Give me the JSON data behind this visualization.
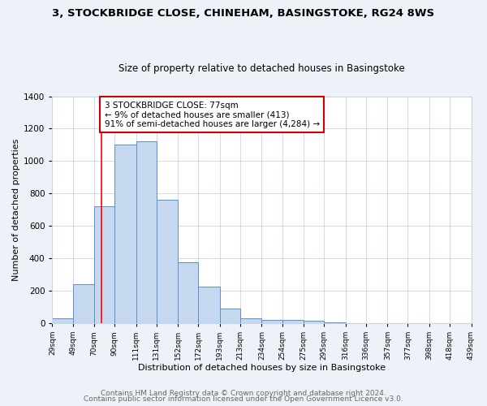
{
  "title1": "3, STOCKBRIDGE CLOSE, CHINEHAM, BASINGSTOKE, RG24 8WS",
  "title2": "Size of property relative to detached houses in Basingstoke",
  "xlabel": "Distribution of detached houses by size in Basingstoke",
  "ylabel": "Number of detached properties",
  "bar_edges": [
    29,
    49,
    70,
    90,
    111,
    131,
    152,
    172,
    193,
    213,
    234,
    254,
    275,
    295,
    316,
    336,
    357,
    377,
    398,
    418,
    439
  ],
  "bar_heights": [
    30,
    240,
    720,
    1100,
    1120,
    760,
    375,
    225,
    90,
    30,
    20,
    18,
    15,
    5,
    0,
    0,
    0,
    0,
    0,
    0
  ],
  "bar_color": "#c5d8f0",
  "bar_edge_color": "#5b8fc9",
  "property_line_x": 77,
  "property_line_color": "red",
  "annotation_line1": "3 STOCKBRIDGE CLOSE: 77sqm",
  "annotation_line2": "← 9% of detached houses are smaller (413)",
  "annotation_line3": "91% of semi-detached houses are larger (4,284) →",
  "annotation_box_color": "white",
  "annotation_box_edge_color": "#cc0000",
  "ylim": [
    0,
    1400
  ],
  "yticks": [
    0,
    200,
    400,
    600,
    800,
    1000,
    1200,
    1400
  ],
  "tick_labels": [
    "29sqm",
    "49sqm",
    "70sqm",
    "90sqm",
    "111sqm",
    "131sqm",
    "152sqm",
    "172sqm",
    "193sqm",
    "213sqm",
    "234sqm",
    "254sqm",
    "275sqm",
    "295sqm",
    "316sqm",
    "336sqm",
    "357sqm",
    "377sqm",
    "398sqm",
    "418sqm",
    "439sqm"
  ],
  "footer1": "Contains HM Land Registry data © Crown copyright and database right 2024.",
  "footer2": "Contains public sector information licensed under the Open Government Licence v3.0.",
  "background_color": "#eef2f8",
  "plot_background_color": "#ffffff",
  "grid_color": "#c8d4e8",
  "title1_fontsize": 9.5,
  "title2_fontsize": 8.5,
  "xlabel_fontsize": 8,
  "ylabel_fontsize": 8,
  "footer_fontsize": 6.5
}
